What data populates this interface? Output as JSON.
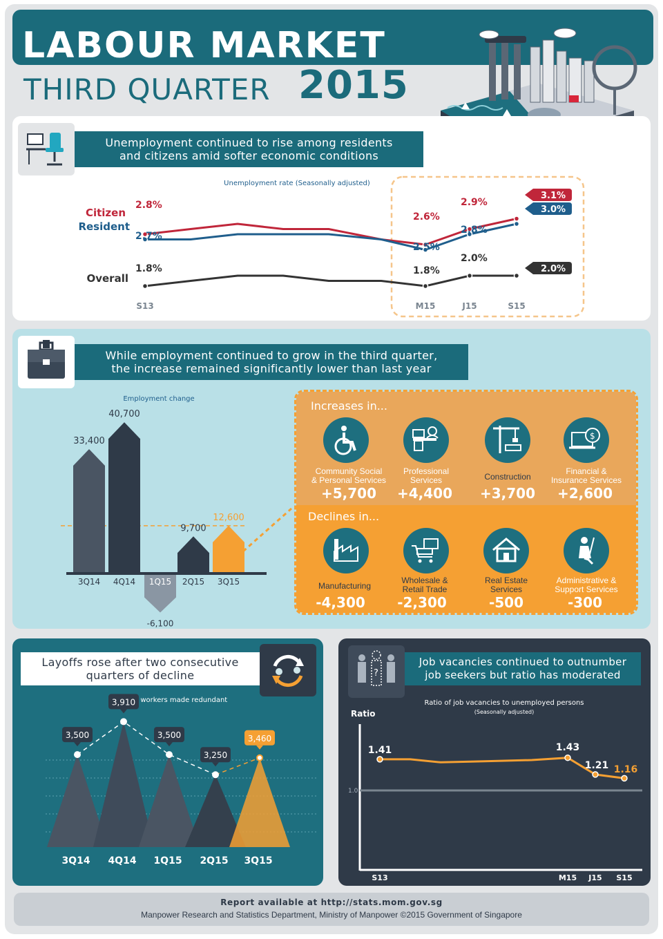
{
  "header": {
    "title": "LABOUR MARKET",
    "subtitle": "THIRD QUARTER",
    "year": "2015"
  },
  "sections": {
    "unemployment": {
      "headline_1": "Unemployment continued to rise among residents",
      "headline_2": "and citizens amid softer economic conditions"
    },
    "employment": {
      "headline_1": "While employment continued to grow in the third quarter,",
      "headline_2": "the increase remained significantly lower than last year"
    },
    "layoffs": {
      "headline_1": "Layoffs rose after two consecutive",
      "headline_2": "quarters of decline"
    },
    "vacancies": {
      "headline_1": "Job vacancies continued to outnumber",
      "headline_2": "job seekers but ratio has moderated"
    }
  },
  "industries": {
    "increases_title": "Increases in...",
    "declines_title": "Declines in...",
    "increases": [
      {
        "label_1": "Community Social",
        "label_2": "& Personal Services",
        "value": "+5,700",
        "icon": "wheelchair-icon"
      },
      {
        "label_1": "Professional",
        "label_2": "Services",
        "value": "+4,400",
        "icon": "desk-worker-icon"
      },
      {
        "label_1": "Construction",
        "label_2": "",
        "value": "+3,700",
        "icon": "crane-icon"
      },
      {
        "label_1": "Financial &",
        "label_2": "Insurance Services",
        "value": "+2,600",
        "icon": "money-laptop-icon"
      }
    ],
    "declines": [
      {
        "label_1": "Manufacturing",
        "label_2": "",
        "value": "-4,300",
        "icon": "factory-icon"
      },
      {
        "label_1": "Wholesale &",
        "label_2": "Retail Trade",
        "value": "-2,300",
        "icon": "shopping-cart-icon"
      },
      {
        "label_1": "Real Estate",
        "label_2": "Services",
        "value": "-500",
        "icon": "house-icon"
      },
      {
        "label_1": "Administrative &",
        "label_2": "Support Services",
        "value": "-300",
        "icon": "cleaning-icon"
      }
    ]
  },
  "footer": {
    "line1": "Report available at http://stats.mom.gov.sg",
    "line2": "Manpower Research and Statistics Department, Ministry of Manpower ©2015 Government of Singapore"
  },
  "colors": {
    "teal_dark": "#1b6b7b",
    "citizen_red": "#c0263a",
    "resident_blue": "#1f5e8c",
    "overall_dark": "#333333",
    "orange": "#f5a033",
    "navy_bar": "#2f3a48"
  },
  "chart_data": [
    {
      "type": "line",
      "title": "Unemployment rate (Seasonally adjusted)",
      "x": [
        "S13",
        "",
        "",
        "",
        "",
        "",
        "M15",
        "J15",
        "S15"
      ],
      "series": [
        {
          "name": "Citizen",
          "values": [
            2.8,
            2.9,
            3.0,
            2.9,
            2.9,
            2.7,
            2.6,
            2.9,
            3.1
          ],
          "labels": [
            "2.8%",
            "",
            "",
            "",
            "",
            "",
            "2.6%",
            "2.9%",
            "3.1%"
          ]
        },
        {
          "name": "Resident",
          "values": [
            2.7,
            2.7,
            2.8,
            2.8,
            2.8,
            2.7,
            2.5,
            2.8,
            3.0
          ],
          "labels": [
            "2.7%",
            "",
            "",
            "",
            "",
            "",
            "2.5%",
            "2.8%",
            "3.0%"
          ]
        },
        {
          "name": "Overall",
          "values": [
            1.8,
            1.9,
            2.0,
            2.0,
            1.9,
            1.9,
            1.8,
            2.0,
            2.0
          ],
          "labels": [
            "1.8%",
            "",
            "",
            "",
            "",
            "",
            "1.8%",
            "2.0%",
            "2.0%"
          ]
        }
      ],
      "highlight": [
        "M15",
        "J15",
        "S15"
      ]
    },
    {
      "type": "bar",
      "title": "Employment change",
      "categories": [
        "3Q14",
        "4Q14",
        "1Q15",
        "2Q15",
        "3Q15"
      ],
      "values": [
        33400,
        40700,
        -6100,
        9700,
        12600
      ],
      "value_labels": [
        "33,400",
        "40,700",
        "-6,100",
        "9,700",
        "12,600"
      ]
    },
    {
      "type": "bar",
      "title": "No. of workers made redundant",
      "categories": [
        "3Q14",
        "4Q14",
        "1Q15",
        "2Q15",
        "3Q15"
      ],
      "values": [
        3500,
        3910,
        3500,
        3250,
        3460
      ],
      "value_labels": [
        "3,500",
        "3,910",
        "3,500",
        "3,250",
        "3,460"
      ]
    },
    {
      "type": "line",
      "title": "Ratio of job vacancies to unemployed persons",
      "subtitle": "(Seasonally adjusted)",
      "ylabel": "Ratio",
      "reference_line": 1.0,
      "reference_label": "1.0",
      "x": [
        "S13",
        "",
        "",
        "",
        "",
        "",
        "M15",
        "J15",
        "S15"
      ],
      "values": [
        1.41,
        1.41,
        1.37,
        1.38,
        1.39,
        1.4,
        1.43,
        1.21,
        1.16
      ],
      "value_labels": [
        "1.41",
        "",
        "",
        "",
        "",
        "",
        "1.43",
        "1.21",
        "1.16"
      ]
    }
  ]
}
